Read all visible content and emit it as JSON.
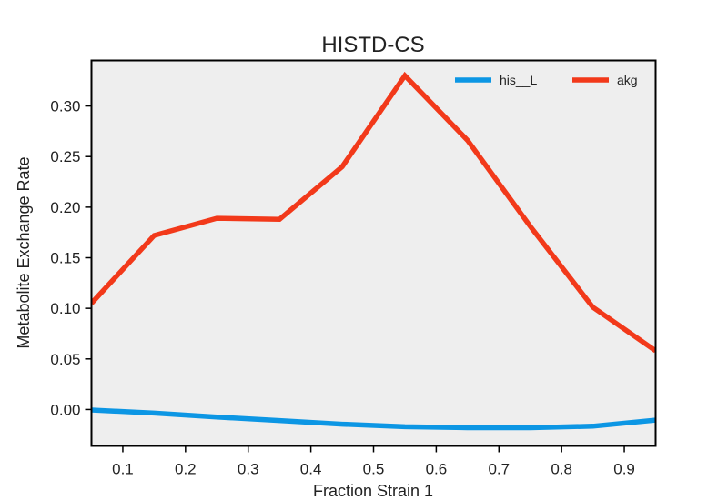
{
  "chart_data": {
    "type": "line",
    "title": "HISTD-CS",
    "xlabel": "Fraction Strain 1",
    "ylabel": "Metabolite Exchange Rate",
    "xlim": [
      0.05,
      0.95
    ],
    "ylim": [
      -0.036,
      0.345
    ],
    "x_ticks": [
      0.1,
      0.2,
      0.3,
      0.4,
      0.5,
      0.6,
      0.7,
      0.8,
      0.9
    ],
    "x_tick_labels": [
      "0.1",
      "0.2",
      "0.3",
      "0.4",
      "0.5",
      "0.6",
      "0.7",
      "0.8",
      "0.9"
    ],
    "y_ticks": [
      0.0,
      0.05,
      0.1,
      0.15,
      0.2,
      0.25,
      0.3
    ],
    "y_tick_labels": [
      "0.00",
      "0.05",
      "0.10",
      "0.15",
      "0.20",
      "0.25",
      "0.30"
    ],
    "grid": false,
    "legend_position": "top-right",
    "background": "#eeeeee",
    "x": [
      0.05,
      0.15,
      0.25,
      0.35,
      0.45,
      0.55,
      0.65,
      0.75,
      0.85,
      0.95
    ],
    "series": [
      {
        "name": "his__L",
        "color": "#0c96e4",
        "values": [
          -0.0005,
          -0.0035,
          -0.0075,
          -0.011,
          -0.0145,
          -0.017,
          -0.018,
          -0.018,
          -0.0165,
          -0.0105
        ]
      },
      {
        "name": "akg",
        "color": "#f2391a",
        "values": [
          0.105,
          0.172,
          0.189,
          0.188,
          0.24,
          0.33,
          0.266,
          0.181,
          0.101,
          0.058
        ]
      }
    ]
  }
}
